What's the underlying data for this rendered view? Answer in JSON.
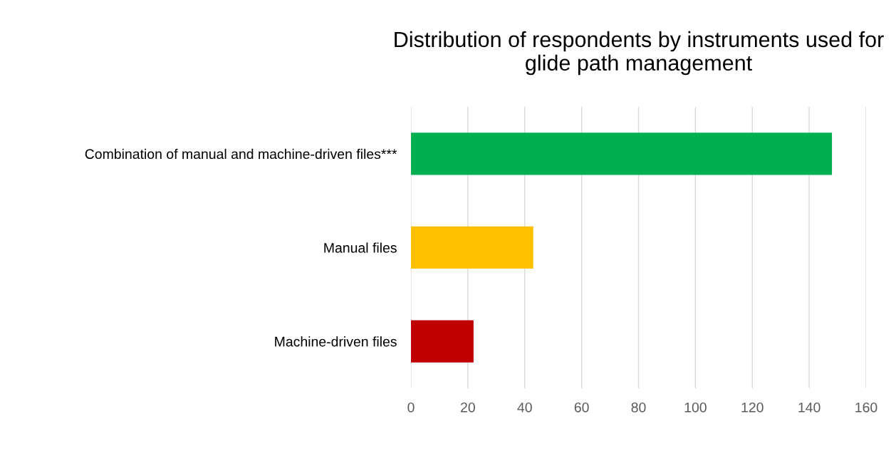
{
  "chart_data": {
    "type": "bar",
    "orientation": "horizontal",
    "title": "Distribution of respondents by instruments used for glide path management",
    "categories": [
      "Combination of manual and machine-driven files***",
      "Manual files",
      "Machine-driven files"
    ],
    "values": [
      148,
      43,
      22
    ],
    "colors": [
      "#00b050",
      "#ffc000",
      "#c00000"
    ],
    "xlim": [
      0,
      160
    ],
    "xticks": [
      0,
      20,
      40,
      60,
      80,
      100,
      120,
      140,
      160
    ],
    "grid": "x"
  }
}
